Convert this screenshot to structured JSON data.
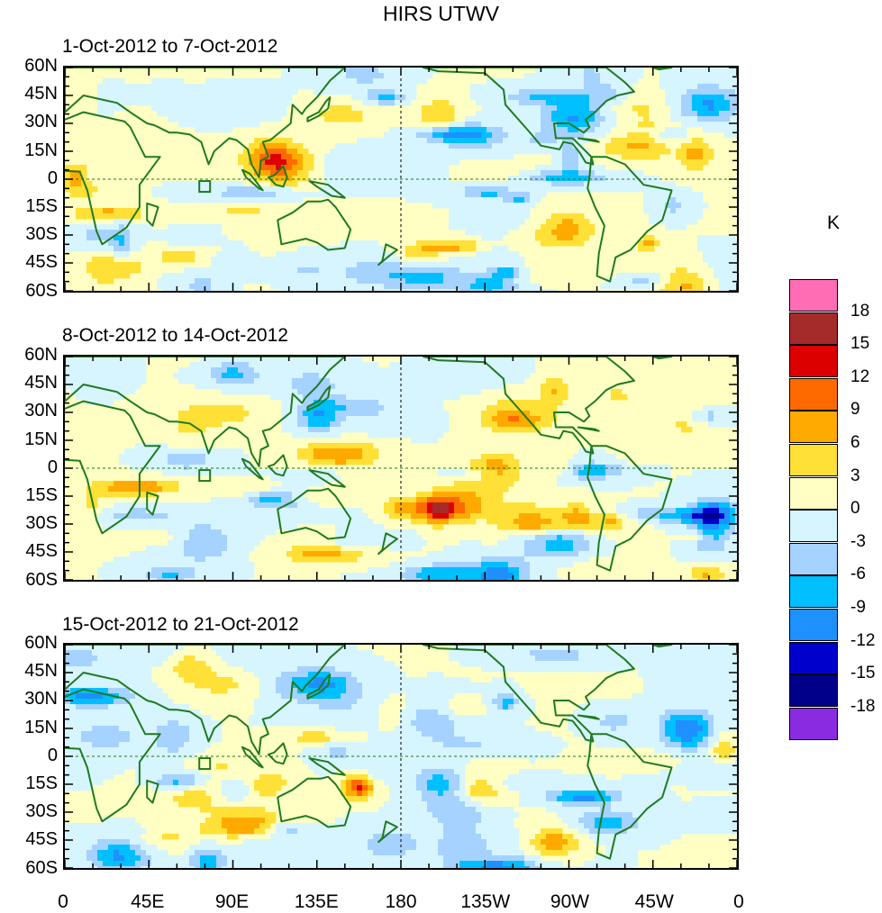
{
  "title": "HIRS UTWV",
  "panels": [
    {
      "title": "1-Oct-2012 to 7-Oct-2012"
    },
    {
      "title": "8-Oct-2012 to 14-Oct-2012"
    },
    {
      "title": "15-Oct-2012 to 21-Oct-2012"
    }
  ],
  "lat_labels": [
    "60N",
    "45N",
    "30N",
    "15N",
    "0",
    "15S",
    "30S",
    "45S",
    "60S"
  ],
  "lon_labels": [
    "0",
    "45E",
    "90E",
    "135E",
    "180",
    "135W",
    "90W",
    "45W",
    "0"
  ],
  "colorbar": {
    "unit": "K",
    "labels": [
      "18",
      "15",
      "12",
      "9",
      "6",
      "3",
      "0",
      "-3",
      "-6",
      "-9",
      "-12",
      "-15",
      "-18"
    ],
    "colors": [
      "#ff6eb4",
      "#a52a2a",
      "#dc0000",
      "#ff6a00",
      "#ffaa00",
      "#ffe036",
      "#ffffc4",
      "#d6f5ff",
      "#a6d2ff",
      "#00bfff",
      "#1e90ff",
      "#0000cd",
      "#00008b",
      "#8a2be2"
    ]
  }
}
